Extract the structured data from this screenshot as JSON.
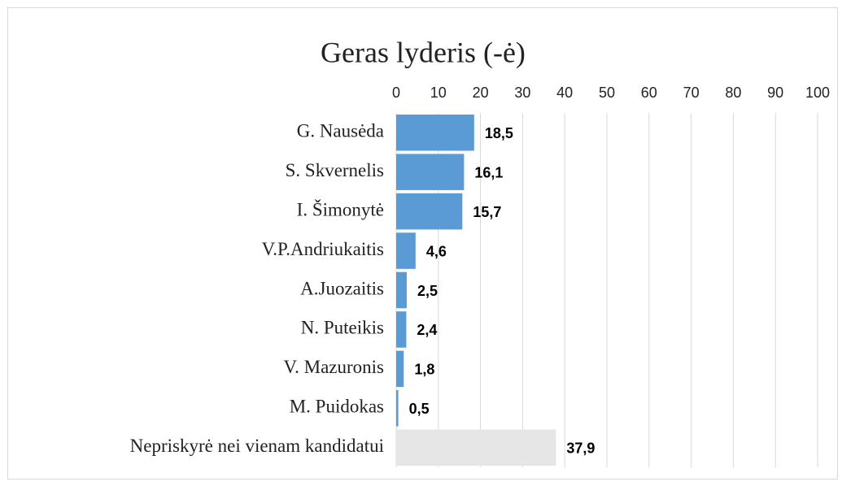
{
  "chart_data": {
    "type": "bar",
    "orientation": "horizontal",
    "title": "Geras lyderis (-ė)",
    "categories": [
      "G. Nausėda",
      "S. Skvernelis",
      "I. Šimonytė",
      "V.P.Andriukaitis",
      "A.Juozaitis",
      "N. Puteikis",
      "V. Mazuronis",
      "M. Puidokas",
      "Nepriskyrė nei vienam kandidatui"
    ],
    "values": [
      18.5,
      16.1,
      15.7,
      4.6,
      2.5,
      2.4,
      1.8,
      0.5,
      37.9
    ],
    "value_labels": [
      "18,5",
      "16,1",
      "15,7",
      "4,6",
      "2,5",
      "2,4",
      "1,8",
      "0,5",
      "37,9"
    ],
    "colors": [
      "#5b9bd5",
      "#5b9bd5",
      "#5b9bd5",
      "#5b9bd5",
      "#5b9bd5",
      "#5b9bd5",
      "#5b9bd5",
      "#5b9bd5",
      "#e6e6e6"
    ],
    "xlim": [
      0,
      100
    ],
    "xticks": [
      0,
      10,
      20,
      30,
      40,
      50,
      60,
      70,
      80,
      90,
      100
    ],
    "grid": true
  }
}
